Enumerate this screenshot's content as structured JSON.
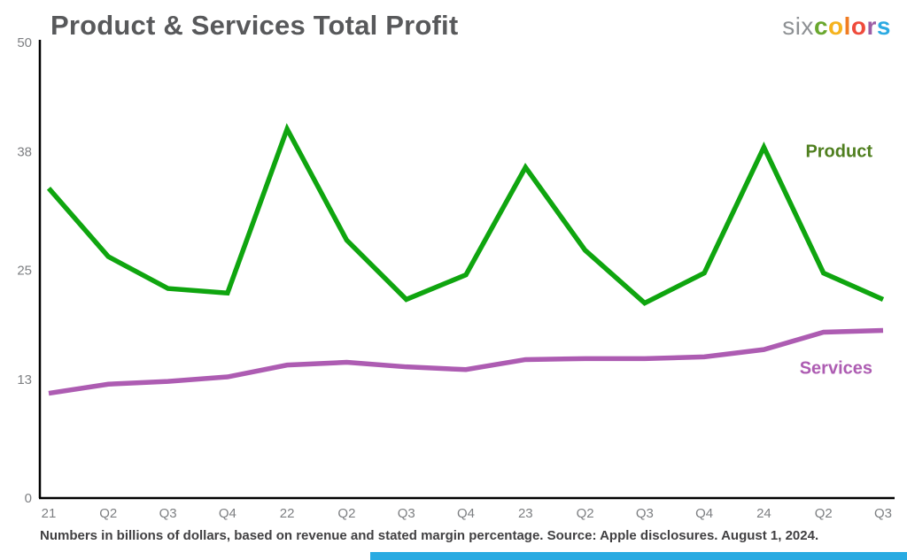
{
  "header": {
    "title": "Product & Services Total Profit",
    "logo": {
      "prefix": "six",
      "word": "colors",
      "prefix_color": "#8e9194",
      "letter_colors": [
        "#69a72e",
        "#f5b31e",
        "#f07d23",
        "#ef4b3c",
        "#9c5da4",
        "#2baae2"
      ]
    }
  },
  "chart_data": {
    "type": "line",
    "title": "Product & Services Total Profit",
    "x": [
      "21",
      "Q2",
      "Q3",
      "Q4",
      "22",
      "Q2",
      "Q3",
      "Q4",
      "23",
      "Q2",
      "Q3",
      "Q4",
      "24",
      "Q2",
      "Q3"
    ],
    "series": [
      {
        "name": "Product",
        "color": "#0fa50f",
        "values": [
          34.0,
          26.5,
          23.0,
          22.5,
          40.5,
          28.3,
          21.8,
          24.5,
          36.3,
          27.2,
          21.4,
          24.7,
          38.5,
          24.7,
          21.8
        ]
      },
      {
        "name": "Services",
        "color": "#ad5cb2",
        "values": [
          11.5,
          12.5,
          12.8,
          13.3,
          14.6,
          14.9,
          14.4,
          14.1,
          15.2,
          15.3,
          15.3,
          15.5,
          16.3,
          18.2,
          18.4
        ]
      }
    ],
    "yticks": [
      0,
      13,
      25,
      38,
      50
    ],
    "ylim": [
      0,
      50
    ],
    "grid": false,
    "legend_position": "inline-right",
    "xlabel": "",
    "ylabel": ""
  },
  "footer": {
    "caption": "Numbers in billions of dollars, based on revenue and stated margin percentage. Source: Apple disclosures. August 1, 2024."
  }
}
